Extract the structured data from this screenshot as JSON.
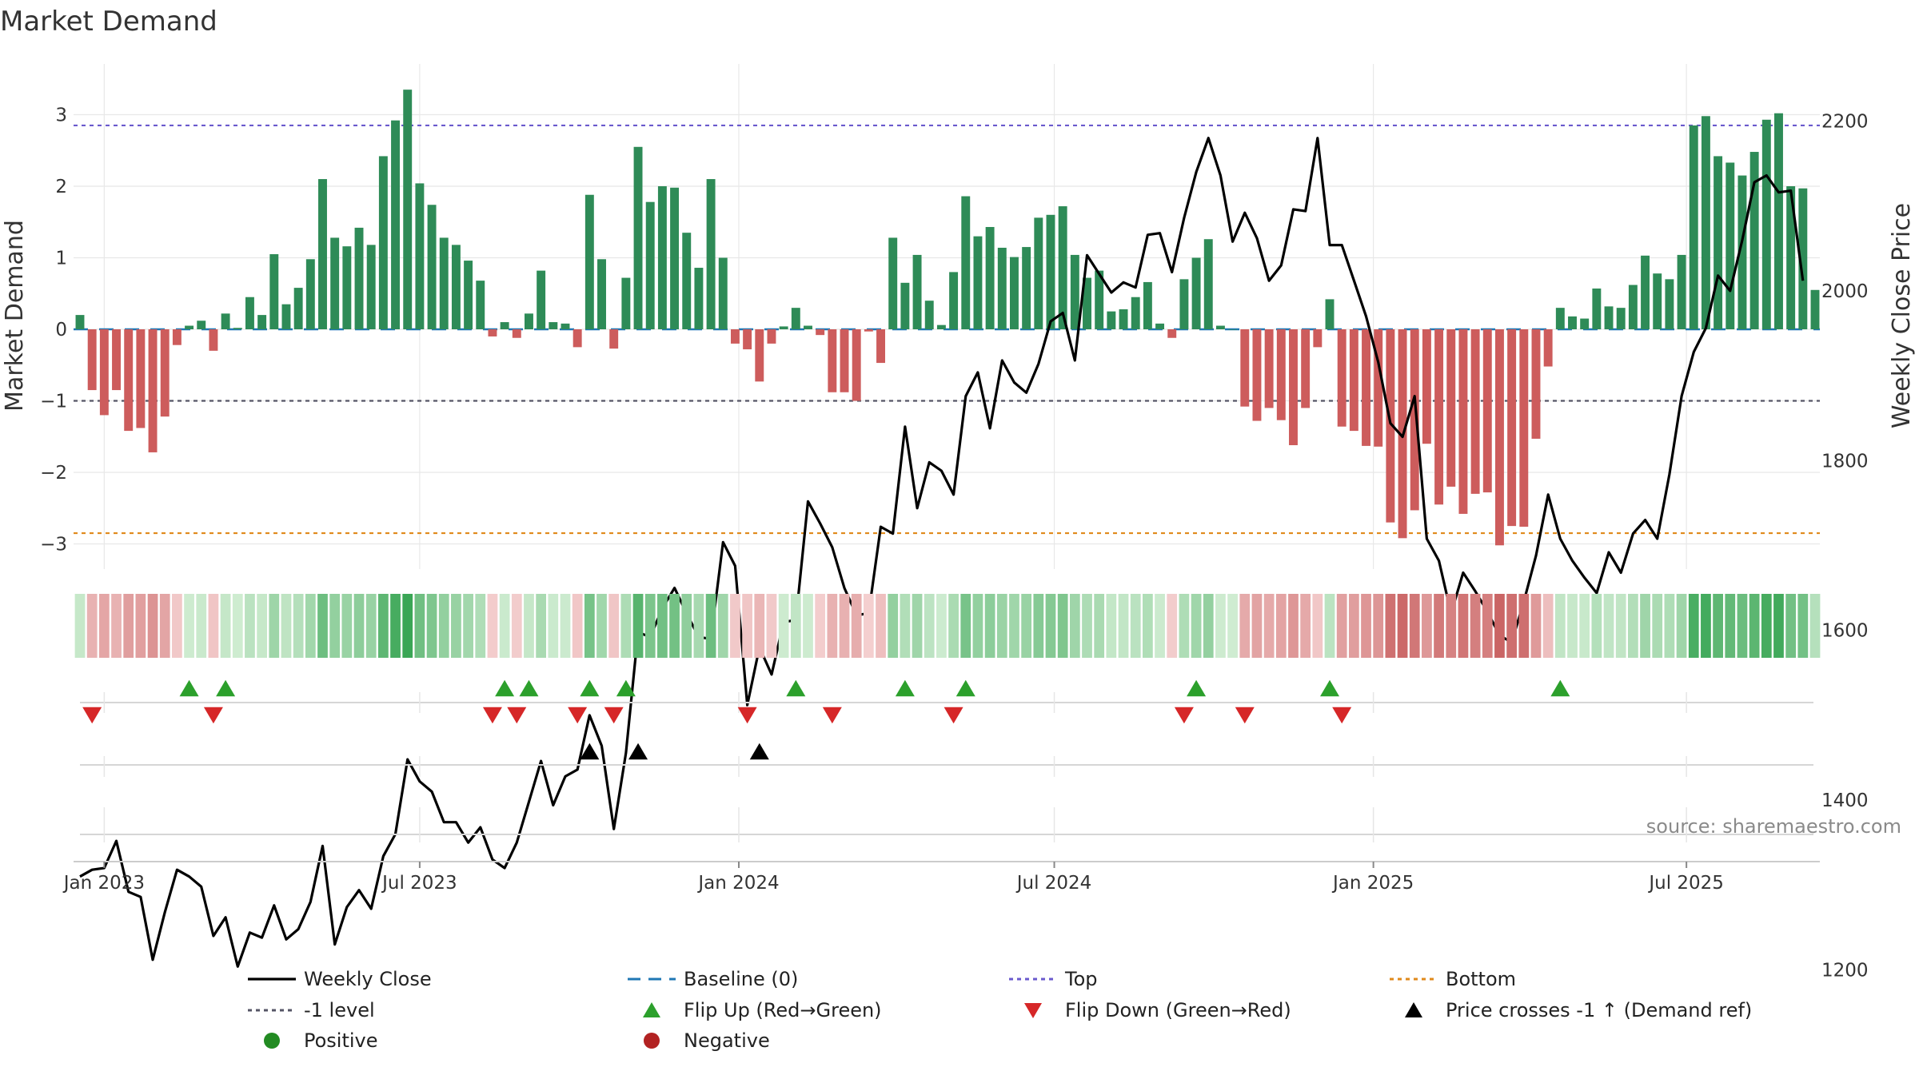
{
  "chart_data": {
    "type": "bar+line",
    "title": "Market Demand",
    "ylabel_left": "Market Demand",
    "ylabel_right": "Weekly Close Price",
    "ylim_left": [
      -3.5,
      3.8
    ],
    "ylim_right": [
      1150,
      2240
    ],
    "left_ticks": [
      3,
      2,
      1,
      0,
      -1,
      -2,
      -3
    ],
    "left_tick_labels": [
      "3",
      "2",
      "1",
      "0",
      "−1",
      "−2",
      "−3"
    ],
    "right_ticks": [
      2200,
      2000,
      1800,
      1600,
      1400,
      1200
    ],
    "right_tick_labels": [
      "2200",
      "2000",
      "1800",
      "1600",
      "1400",
      "1200"
    ],
    "x_start": "2022-12-19",
    "x_tick_labels": [
      "Jan 2023",
      "Jul 2023",
      "Jan 2024",
      "Jul 2024",
      "Jan 2025",
      "Jul 2025"
    ],
    "x_tick_weeks": [
      2,
      28,
      54.3,
      80.3,
      106.6,
      132.4
    ],
    "reference_lines": {
      "top": 2.85,
      "minus1": -1,
      "bottom": -2.85,
      "baseline": 0
    },
    "demand": [
      0.2,
      -0.85,
      -1.2,
      -0.85,
      -1.42,
      -1.38,
      -1.72,
      -1.22,
      -0.22,
      0.05,
      0.12,
      -0.3,
      0.22,
      0.02,
      0.45,
      0.2,
      1.05,
      0.35,
      0.58,
      0.98,
      2.1,
      1.28,
      1.16,
      1.42,
      1.18,
      2.42,
      2.92,
      3.35,
      2.04,
      1.74,
      1.28,
      1.18,
      0.96,
      0.68,
      -0.1,
      0.1,
      -0.12,
      0.22,
      0.82,
      0.1,
      0.08,
      -0.25,
      1.88,
      0.98,
      -0.27,
      0.72,
      2.55,
      1.78,
      2.0,
      1.98,
      1.35,
      0.86,
      2.1,
      1.0,
      -0.2,
      -0.28,
      -0.73,
      -0.2,
      0.04,
      0.3,
      0.05,
      -0.08,
      -0.88,
      -0.88,
      -1.0,
      -0.03,
      -0.47,
      1.28,
      0.65,
      1.04,
      0.4,
      0.06,
      0.8,
      1.86,
      1.3,
      1.43,
      1.14,
      1.01,
      1.15,
      1.56,
      1.6,
      1.72,
      1.04,
      0.72,
      0.82,
      0.25,
      0.28,
      0.45,
      0.66,
      0.08,
      -0.12,
      0.7,
      1.0,
      1.26,
      0.05,
      0.0,
      -1.08,
      -1.28,
      -1.1,
      -1.27,
      -1.62,
      -1.1,
      -0.25,
      0.42,
      -1.36,
      -1.42,
      -1.63,
      -1.64,
      -2.7,
      -2.92,
      -2.53,
      -1.6,
      -2.45,
      -2.2,
      -2.58,
      -2.3,
      -2.28,
      -3.02,
      -2.75,
      -2.76,
      -1.53,
      -0.52,
      0.3,
      0.18,
      0.15,
      0.57,
      0.32,
      0.3,
      0.62,
      1.03,
      0.78,
      0.7,
      1.04,
      2.85,
      2.98,
      2.42,
      2.33,
      2.15,
      2.48,
      2.93,
      3.02,
      2.0,
      1.97,
      0.55
    ],
    "weekly_close": [
      1310,
      1318,
      1320,
      1352,
      1292,
      1286,
      1212,
      1268,
      1318,
      1310,
      1298,
      1240,
      1262,
      1204,
      1244,
      1238,
      1276,
      1236,
      1248,
      1280,
      1346,
      1230,
      1274,
      1294,
      1272,
      1334,
      1360,
      1448,
      1422,
      1410,
      1374,
      1374,
      1350,
      1368,
      1330,
      1320,
      1350,
      1398,
      1446,
      1394,
      1428,
      1436,
      1500,
      1464,
      1366,
      1456,
      1598,
      1592,
      1626,
      1650,
      1620,
      1592,
      1590,
      1704,
      1676,
      1512,
      1580,
      1548,
      1610,
      1612,
      1752,
      1726,
      1698,
      1650,
      1618,
      1620,
      1722,
      1714,
      1840,
      1744,
      1798,
      1788,
      1760,
      1876,
      1904,
      1838,
      1918,
      1892,
      1880,
      1914,
      1964,
      1974,
      1918,
      2042,
      2020,
      1998,
      2010,
      2004,
      2066,
      2068,
      2022,
      2086,
      2140,
      2180,
      2136,
      2058,
      2092,
      2062,
      2012,
      2030,
      2096,
      2094,
      2180,
      2054,
      2054,
      2012,
      1970,
      1916,
      1844,
      1828,
      1876,
      1708,
      1682,
      1620,
      1668,
      1646,
      1622,
      1594,
      1586,
      1634,
      1688,
      1760,
      1708,
      1682,
      1662,
      1644,
      1692,
      1668,
      1714,
      1730,
      1708,
      1784,
      1876,
      1928,
      1956,
      2018,
      2000,
      2060,
      2128,
      2136,
      2116,
      2118,
      2012
    ],
    "flip_up_weeks": [
      9,
      12,
      35,
      37,
      42,
      45,
      59,
      68,
      73,
      92,
      103,
      122
    ],
    "flip_down_weeks": [
      1,
      11,
      34,
      36,
      41,
      44,
      55,
      62,
      72,
      91,
      96,
      104
    ],
    "price_cross_weeks": [
      42,
      46,
      56
    ],
    "legend": [
      {
        "label": "Weekly Close",
        "kind": "line",
        "color": "#000000"
      },
      {
        "label": "Baseline (0)",
        "kind": "dash",
        "color": "#1f77b4"
      },
      {
        "label": "Top",
        "kind": "dot",
        "color": "#6a5acd"
      },
      {
        "label": "Bottom",
        "kind": "dot",
        "color": "#e08a1c"
      },
      {
        "label": "-1 level",
        "kind": "dot",
        "color": "#555566"
      },
      {
        "label": "Flip Up (Red→Green)",
        "kind": "tri-up",
        "color": "#2ca02c"
      },
      {
        "label": "Flip Down (Green→Red)",
        "kind": "tri-down",
        "color": "#d62728"
      },
      {
        "label": "Price crosses -1 ↑ (Demand ref)",
        "kind": "tri-up",
        "color": "#000000"
      },
      {
        "label": "Positive",
        "kind": "dot-marker",
        "color": "#228b22"
      },
      {
        "label": "Negative",
        "kind": "dot-marker",
        "color": "#b22222"
      }
    ]
  },
  "source": "source: sharemaestro.com",
  "colors": {
    "positive_bar": "#2e8b57",
    "negative_bar": "#cd5c5c",
    "line": "#000000",
    "grid": "#e8e8e8"
  }
}
